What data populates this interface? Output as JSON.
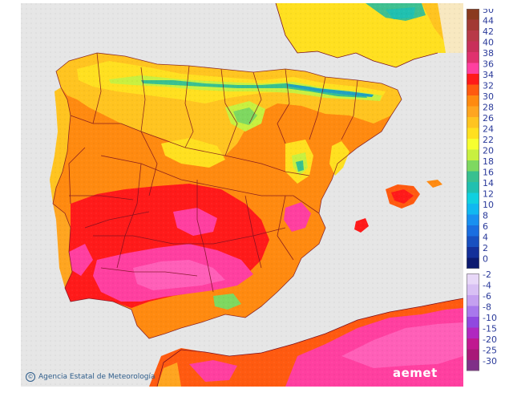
{
  "credit": "Agencia Estatal de Meteorología",
  "brand": "aemet",
  "legend": [
    {
      "label": "50",
      "color": "#8b3a1e"
    },
    {
      "label": "44",
      "color": "#a23a34"
    },
    {
      "label": "42",
      "color": "#b83a48"
    },
    {
      "label": "40",
      "color": "#c8305a"
    },
    {
      "label": "38",
      "color": "#e0306e"
    },
    {
      "label": "36",
      "color": "#ff3fa0"
    },
    {
      "label": "34",
      "color": "#ff1a1a"
    },
    {
      "label": "32",
      "color": "#ff5a10"
    },
    {
      "label": "30",
      "color": "#ff8a10"
    },
    {
      "label": "28",
      "color": "#ffa520"
    },
    {
      "label": "26",
      "color": "#ffc420"
    },
    {
      "label": "24",
      "color": "#ffe020"
    },
    {
      "label": "22",
      "color": "#f6ff30"
    },
    {
      "label": "20",
      "color": "#c8f040"
    },
    {
      "label": "18",
      "color": "#7ed860"
    },
    {
      "label": "16",
      "color": "#38c090"
    },
    {
      "label": "14",
      "color": "#20c0b0"
    },
    {
      "label": "12",
      "color": "#10d0e0"
    },
    {
      "label": "10",
      "color": "#10b8f0"
    },
    {
      "label": "8",
      "color": "#1890f0"
    },
    {
      "label": "6",
      "color": "#1a6ee0"
    },
    {
      "label": "4",
      "color": "#1850c0"
    },
    {
      "label": "2",
      "color": "#14309a"
    },
    {
      "label": "0",
      "color": "#0c1a70"
    },
    {
      "label": "-2",
      "color": "#e8d8f8"
    },
    {
      "label": "-4",
      "color": "#d8c0f4"
    },
    {
      "label": "-6",
      "color": "#c4a0f0"
    },
    {
      "label": "-8",
      "color": "#a878ec"
    },
    {
      "label": "-10",
      "color": "#9048e0"
    },
    {
      "label": "-15",
      "color": "#b028c0"
    },
    {
      "label": "-20",
      "color": "#c01890"
    },
    {
      "label": "-25",
      "color": "#a81878"
    },
    {
      "label": "-30",
      "color": "#803088"
    }
  ]
}
